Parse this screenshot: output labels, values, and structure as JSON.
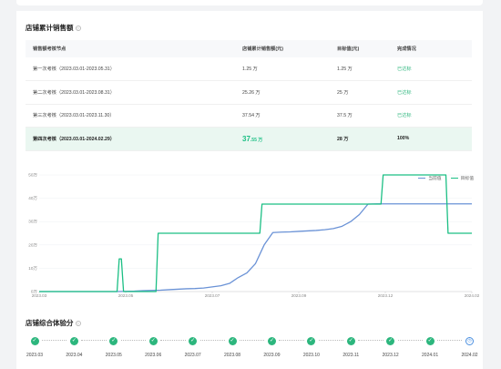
{
  "sales_section": {
    "title": "店铺累计销售额",
    "headers": [
      "销售额考核节点",
      "店铺累计销售额(元)",
      "目标值(元)",
      "完成情况"
    ],
    "rows": [
      {
        "period": "第一次考核（2023.03.01-2023.05.31）",
        "value": "1.25 万",
        "target": "1.25 万",
        "status": "已达标"
      },
      {
        "period": "第二次考核（2023.03.01-2023.08.31）",
        "value": "25.26 万",
        "target": "25 万",
        "status": "已达标"
      },
      {
        "period": "第三次考核（2023.03.01-2023.11.30）",
        "value": "37.54 万",
        "target": "37.5 万",
        "status": "已达标"
      },
      {
        "period": "第四次考核（2023.03.01-2024.02.29）",
        "value_num": "37",
        "value_unit": ".55 万",
        "target": "28 万",
        "status": "100%"
      }
    ]
  },
  "chart_data": {
    "type": "line",
    "x_ticks": [
      "2023.03",
      "2023.05",
      "2023.07",
      "2023.09",
      "2023.12",
      "2024.02"
    ],
    "y_ticks": [
      "0万",
      "10万",
      "20万",
      "30万",
      "40万",
      "50万"
    ],
    "ylim": [
      0,
      50
    ],
    "series": [
      {
        "name": "当前值",
        "color": "#6a92d6",
        "x": [
          0,
          0.02,
          0.04,
          0.06,
          0.08,
          0.1,
          0.12,
          0.14,
          0.16,
          0.18,
          0.2,
          0.22,
          0.24,
          0.26,
          0.28,
          0.3,
          0.32,
          0.34,
          0.36,
          0.38,
          0.4,
          0.42,
          0.44,
          0.46,
          0.48,
          0.5,
          0.52,
          0.54,
          0.56,
          0.58,
          0.6,
          0.62,
          0.64,
          0.66,
          0.68,
          0.7,
          0.72,
          0.74,
          0.76,
          0.78,
          0.8,
          0.82,
          0.84,
          0.86,
          0.88,
          0.9,
          0.92,
          0.94,
          0.96,
          0.98,
          1.0
        ],
        "values": [
          0,
          0,
          0,
          0,
          0,
          0,
          0,
          0,
          0,
          0,
          0.1,
          0.2,
          0.4,
          0.5,
          0.6,
          0.8,
          1.0,
          1.2,
          1.3,
          1.5,
          2.0,
          2.5,
          3.5,
          6,
          8,
          12,
          20,
          25.3,
          25.5,
          25.6,
          25.8,
          26,
          26.2,
          26.5,
          27,
          28,
          30,
          33,
          37.5,
          37.6,
          37.6,
          37.6,
          37.6,
          37.6,
          37.6,
          37.6,
          37.6,
          37.6,
          37.6,
          37.6,
          37.6
        ]
      },
      {
        "name": "目标值",
        "color": "#1bbf84",
        "x": [
          0,
          0.18,
          0.185,
          0.19,
          0.195,
          0.2,
          0.27,
          0.275,
          0.51,
          0.515,
          0.79,
          0.795,
          0.94,
          0.945,
          1.0
        ],
        "values": [
          0,
          0,
          14,
          14,
          0,
          0,
          0,
          25,
          25,
          37.5,
          37.5,
          50,
          50,
          25,
          25
        ]
      }
    ],
    "legend_placement": "top-right"
  },
  "score_section": {
    "title": "店铺综合体验分",
    "months": [
      "2023.03",
      "2023.04",
      "2023.05",
      "2023.06",
      "2023.07",
      "2023.08",
      "2023.09",
      "2023.10",
      "2023.11",
      "2023.12",
      "2024.01",
      "2024.02"
    ],
    "statuses": [
      "done",
      "done",
      "done",
      "done",
      "done",
      "done",
      "done",
      "done",
      "done",
      "done",
      "done",
      "pending"
    ]
  }
}
